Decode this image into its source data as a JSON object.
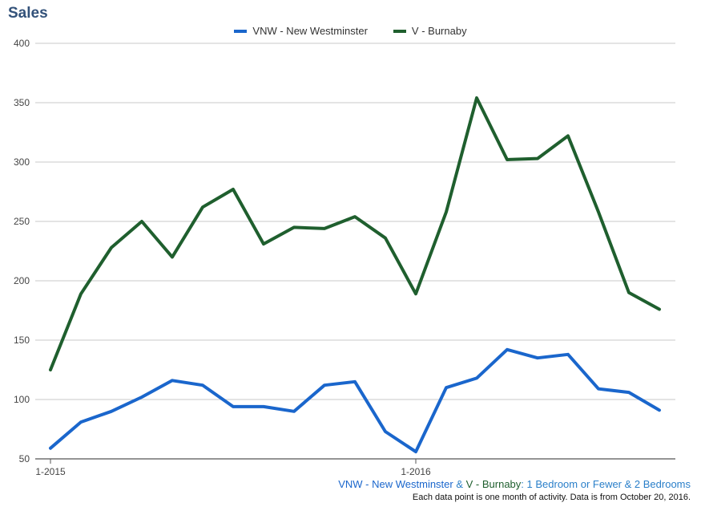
{
  "chart_data": {
    "type": "line",
    "title": "Sales",
    "xlabel": "",
    "ylabel": "",
    "x": [
      "2015-01",
      "2015-02",
      "2015-03",
      "2015-04",
      "2015-05",
      "2015-06",
      "2015-07",
      "2015-08",
      "2015-09",
      "2015-10",
      "2015-11",
      "2015-12",
      "2016-01",
      "2016-02",
      "2016-03",
      "2016-04",
      "2016-05",
      "2016-06",
      "2016-07",
      "2016-08",
      "2016-09"
    ],
    "x_tick_labels": [
      "1-2015",
      "1-2016"
    ],
    "ylim": [
      50,
      400
    ],
    "y_ticks": [
      50,
      100,
      150,
      200,
      250,
      300,
      350,
      400
    ],
    "grid": true,
    "legend_position": "top-center",
    "series": [
      {
        "name": "VNW - New Westminster",
        "color": "#1a66cc",
        "values": [
          59,
          81,
          90,
          102,
          116,
          112,
          94,
          94,
          90,
          112,
          115,
          73,
          56,
          110,
          118,
          142,
          135,
          138,
          109,
          106,
          91
        ]
      },
      {
        "name": "V - Burnaby",
        "color": "#1f5f2e",
        "values": [
          125,
          189,
          228,
          250,
          220,
          262,
          277,
          231,
          245,
          244,
          254,
          236,
          189,
          258,
          354,
          302,
          303,
          322,
          258,
          190,
          176
        ]
      }
    ]
  },
  "footer": {
    "series_a": "VNW - New Westminster",
    "amp": " & ",
    "series_b": "V - Burnaby",
    "suffix": ": 1 Bedroom or Fewer & 2 Bedrooms",
    "note": "Each data point is one month of activity. Data is from October 20, 2016."
  },
  "colors": {
    "grid": "#c8c8c8",
    "axis": "#555555",
    "title": "#33527a"
  }
}
